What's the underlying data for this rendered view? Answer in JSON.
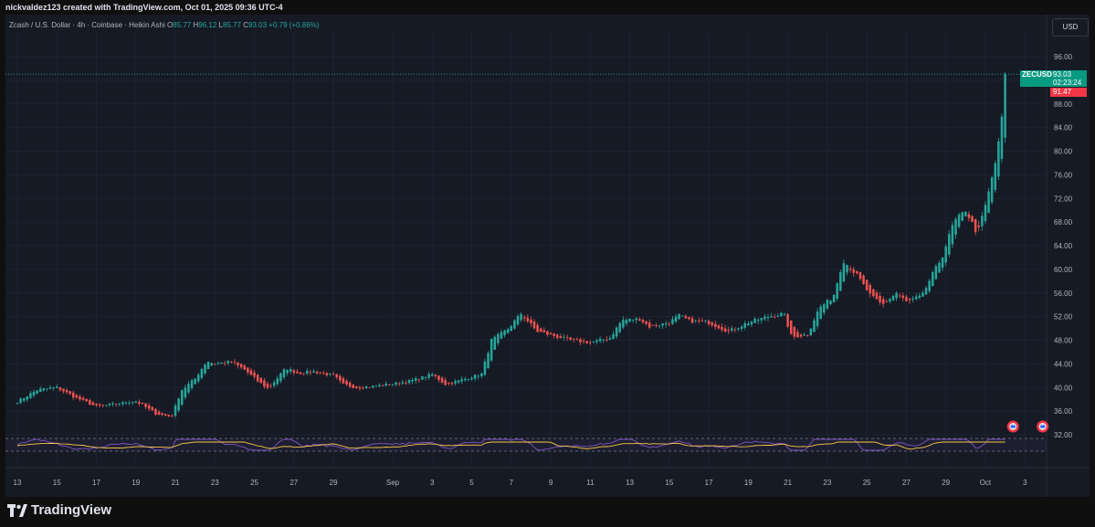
{
  "header": {
    "credit": "nickvaldez123 created with TradingView.com, Oct 01, 2025 09:36 UTC-4"
  },
  "legend": {
    "symbol": "Zcash / U.S. Dollar · 4h · Coinbase · Heikin Ashi",
    "open_label": "O",
    "open": "85.77",
    "high_label": "H",
    "high": "96.12",
    "low_label": "L",
    "low": "85.77",
    "close_label": "C",
    "close": "93.03",
    "change": "+0.79 (+0.86%)"
  },
  "currency_button": "USD",
  "price_badge": {
    "ticker": "ZECUSD",
    "price": "93.03",
    "countdown": "02:23:24"
  },
  "last_badge": "91.47",
  "footer": {
    "brand": "TradingView"
  },
  "colors": {
    "up": "#26a69a",
    "down": "#ef5350",
    "background": "#161a25",
    "rsi": "#7e57c2",
    "rsi_ma": "#f7c948"
  },
  "icons": [
    "earnings-flag-icon",
    "earnings-flag-icon",
    "tradingview-logo-icon"
  ],
  "chart_data": {
    "type": "candlestick",
    "style": "Heikin Ashi",
    "timeframe": "4h",
    "ylim": [
      30,
      100
    ],
    "y_ticks": [
      "96.00",
      "92.00",
      "88.00",
      "84.00",
      "80.00",
      "76.00",
      "72.00",
      "68.00",
      "64.00",
      "60.00",
      "56.00",
      "52.00",
      "48.00",
      "44.00",
      "40.00",
      "36.00",
      "32.00"
    ],
    "x_ticks": [
      "13",
      "15",
      "17",
      "19",
      "21",
      "23",
      "25",
      "27",
      "29",
      "Sep",
      "3",
      "5",
      "7",
      "9",
      "11",
      "13",
      "15",
      "17",
      "19",
      "21",
      "23",
      "25",
      "27",
      "29",
      "Oct",
      "3"
    ],
    "x_tick_days": [
      0,
      2,
      4,
      6,
      8,
      10,
      12,
      14,
      16,
      19,
      21,
      23,
      25,
      27,
      29,
      31,
      33,
      35,
      37,
      39,
      41,
      43,
      45,
      47,
      49,
      51
    ],
    "x_range_days": [
      -0.6,
      52.1
    ],
    "last_price": 93.03,
    "close_path": [
      [
        0,
        37.6
      ],
      [
        1,
        39.6
      ],
      [
        2,
        40.0
      ],
      [
        3,
        38.2
      ],
      [
        4,
        36.8
      ],
      [
        5,
        37.2
      ],
      [
        6,
        37.7
      ],
      [
        7,
        35.6
      ],
      [
        7.8,
        35.0
      ],
      [
        8.3,
        39.5
      ],
      [
        9,
        41.5
      ],
      [
        9.6,
        44.5
      ],
      [
        10,
        44.0
      ],
      [
        10.8,
        44.4
      ],
      [
        11.5,
        43.0
      ],
      [
        12.2,
        41.0
      ],
      [
        12.7,
        39.8
      ],
      [
        13.6,
        43.3
      ],
      [
        14.2,
        42.4
      ],
      [
        15,
        42.7
      ],
      [
        16,
        42.0
      ],
      [
        16.5,
        40.5
      ],
      [
        17.2,
        40.0
      ],
      [
        18,
        40.2
      ],
      [
        19,
        40.6
      ],
      [
        20,
        41.2
      ],
      [
        21,
        42.2
      ],
      [
        21.7,
        40.5
      ],
      [
        22.5,
        41.3
      ],
      [
        23.5,
        42.3
      ],
      [
        24,
        48.0
      ],
      [
        24.8,
        49.8
      ],
      [
        25.5,
        52.5
      ],
      [
        26.3,
        49.5
      ],
      [
        27,
        48.9
      ],
      [
        28,
        48.0
      ],
      [
        29,
        47.6
      ],
      [
        30,
        48.4
      ],
      [
        30.6,
        51.4
      ],
      [
        31.5,
        51.6
      ],
      [
        32,
        50.3
      ],
      [
        33,
        51.0
      ],
      [
        33.5,
        52.2
      ],
      [
        34,
        51.3
      ],
      [
        35,
        51.0
      ],
      [
        36,
        49.5
      ],
      [
        37,
        51.0
      ],
      [
        38,
        52.0
      ],
      [
        38.8,
        52.5
      ],
      [
        39.2,
        48.5
      ],
      [
        40,
        49.0
      ],
      [
        40.6,
        53.5
      ],
      [
        41.3,
        55.3
      ],
      [
        41.8,
        61.5
      ],
      [
        42.5,
        59.0
      ],
      [
        43.2,
        55.5
      ],
      [
        43.8,
        54.0
      ],
      [
        44.5,
        56.0
      ],
      [
        45,
        54.5
      ],
      [
        45.8,
        55.5
      ],
      [
        46.3,
        59.0
      ],
      [
        46.8,
        62.0
      ],
      [
        47.4,
        68.0
      ],
      [
        48,
        70.0
      ],
      [
        48.6,
        66.0
      ],
      [
        49.1,
        72.0
      ],
      [
        49.6,
        79.5
      ],
      [
        50.1,
        93.0
      ]
    ],
    "rsi_panel": {
      "level_lines": [
        70,
        30
      ]
    }
  }
}
